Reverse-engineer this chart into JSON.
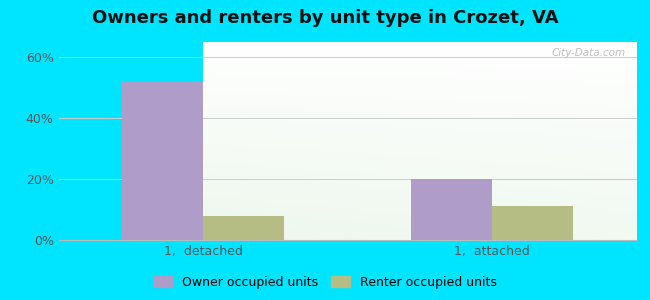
{
  "title": "Owners and renters by unit type in Crozet, VA",
  "categories": [
    "1,  detached",
    "1,  attached"
  ],
  "owner_values": [
    52,
    20
  ],
  "renter_values": [
    8,
    11
  ],
  "owner_color": "#b09cc8",
  "renter_color": "#b5bc84",
  "ylim_max": 65,
  "yticks": [
    0,
    20,
    40,
    60
  ],
  "ytick_labels": [
    "0%",
    "20%",
    "40%",
    "60%"
  ],
  "outer_bg": "#00e5ff",
  "title_fontsize": 13,
  "legend_labels": [
    "Owner occupied units",
    "Renter occupied units"
  ],
  "watermark": "City-Data.com",
  "bar_width": 0.28
}
